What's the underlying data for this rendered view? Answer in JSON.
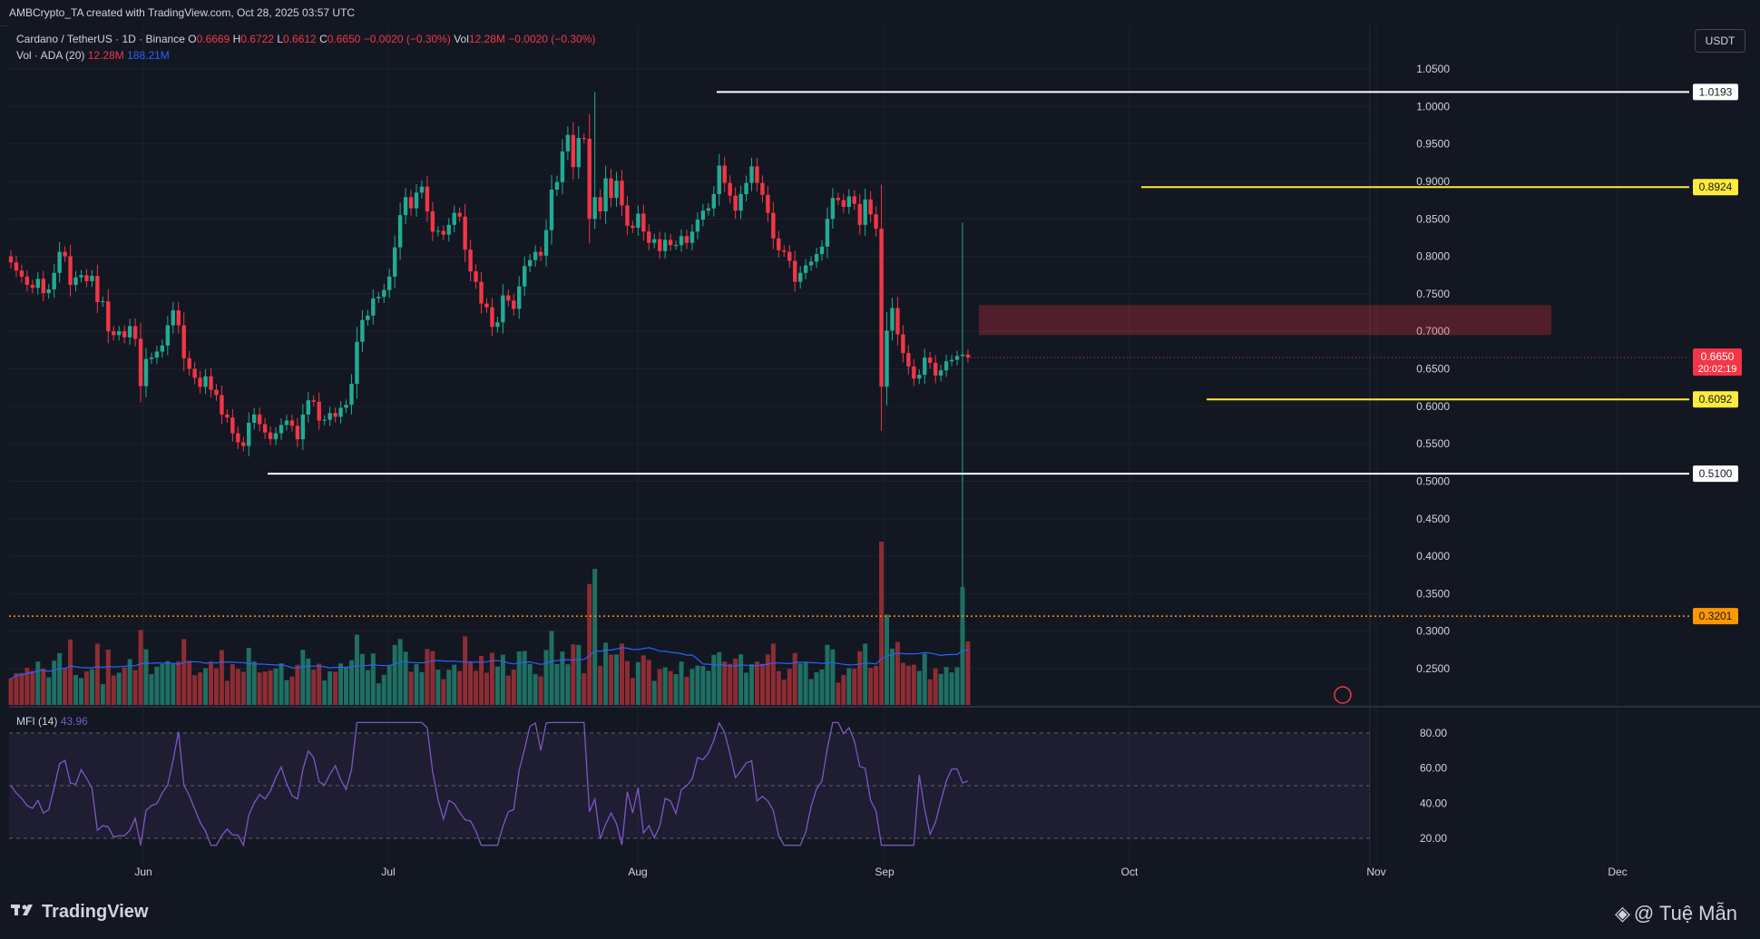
{
  "header": {
    "attribution": "AMBCrypto_TA created with TradingView.com, Oct 28, 2025 03:57 UTC"
  },
  "legend": {
    "symbol": "Cardano / TetherUS · 1D · Binance",
    "open_label": "O",
    "open": "0.6669",
    "high_label": "H",
    "high": "0.6722",
    "low_label": "L",
    "low": "0.6612",
    "close_label": "C",
    "close": "0.6650",
    "change": "−0.0020 (−0.30%)",
    "vol_label": "Vol",
    "vol": "12.28M",
    "vol_change": "−0.0020 (−0.30%)",
    "vol_ada_label": "Vol · ADA (20)",
    "vol_ada": "12.28M",
    "vol_ma": "188.21M"
  },
  "mfi_legend": {
    "label": "MFI (14)",
    "value": "43.96"
  },
  "currency_button": "USDT",
  "footer": {
    "brand": "TradingView",
    "watermark": "@ Tuệ Mẫn"
  },
  "colors": {
    "bg": "#131722",
    "up": "#22ab94",
    "down": "#f23645",
    "vol_up": "#1f6f63",
    "vol_down": "#8d2d33",
    "vol_ma": "#2962ff",
    "mfi": "#7e57c2",
    "yellow": "#ffeb3b",
    "orange": "#ff9800",
    "grid": "#1e222d",
    "text": "#d1d4dc"
  },
  "chart_data": {
    "type": "candlestick",
    "price_axis": {
      "ylim": [
        0.22,
        1.07
      ],
      "ticks": [
        "1.0500",
        "1.0000",
        "0.9500",
        "0.9000",
        "0.8500",
        "0.8000",
        "0.7500",
        "0.7000",
        "0.6500",
        "0.6000",
        "0.5500",
        "0.5000",
        "0.4500",
        "0.4000",
        "0.3500",
        "0.3000",
        "0.2500"
      ]
    },
    "time_axis": {
      "labels": [
        "Jun",
        "Jul",
        "Aug",
        "Sep",
        "Oct",
        "Nov",
        "Dec"
      ]
    },
    "levels": [
      {
        "price": 1.0193,
        "label": "1.0193",
        "style": "white"
      },
      {
        "price": 0.8924,
        "label": "0.8924",
        "style": "yellow"
      },
      {
        "price": 0.6092,
        "label": "0.6092",
        "style": "yellow"
      },
      {
        "price": 0.51,
        "label": "0.5100",
        "style": "white"
      },
      {
        "price": 0.3201,
        "label": "0.3201",
        "style": "orange-dotted"
      }
    ],
    "current_price": {
      "label": "0.6650",
      "countdown": "20:02:19"
    },
    "zone": {
      "from": 0.695,
      "to": 0.735
    },
    "closes": [
      0.792,
      0.781,
      0.773,
      0.762,
      0.758,
      0.77,
      0.751,
      0.756,
      0.778,
      0.806,
      0.8,
      0.762,
      0.772,
      0.775,
      0.767,
      0.774,
      0.739,
      0.74,
      0.7,
      0.695,
      0.7,
      0.692,
      0.707,
      0.69,
      0.627,
      0.663,
      0.665,
      0.673,
      0.681,
      0.708,
      0.728,
      0.708,
      0.664,
      0.65,
      0.638,
      0.626,
      0.64,
      0.622,
      0.615,
      0.589,
      0.585,
      0.564,
      0.552,
      0.547,
      0.578,
      0.589,
      0.576,
      0.565,
      0.556,
      0.564,
      0.575,
      0.581,
      0.574,
      0.556,
      0.589,
      0.608,
      0.606,
      0.581,
      0.582,
      0.591,
      0.586,
      0.598,
      0.602,
      0.63,
      0.686,
      0.715,
      0.721,
      0.744,
      0.746,
      0.755,
      0.773,
      0.812,
      0.855,
      0.879,
      0.864,
      0.885,
      0.893,
      0.86,
      0.833,
      0.834,
      0.829,
      0.842,
      0.858,
      0.853,
      0.809,
      0.78,
      0.766,
      0.737,
      0.732,
      0.706,
      0.712,
      0.748,
      0.741,
      0.73,
      0.76,
      0.787,
      0.795,
      0.806,
      0.801,
      0.835,
      0.889,
      0.899,
      0.94,
      0.962,
      0.919,
      0.958,
      0.957,
      0.85,
      0.879,
      0.86,
      0.904,
      0.878,
      0.901,
      0.868,
      0.841,
      0.838,
      0.857,
      0.833,
      0.818,
      0.823,
      0.807,
      0.822,
      0.815,
      0.815,
      0.827,
      0.818,
      0.833,
      0.849,
      0.861,
      0.864,
      0.883,
      0.921,
      0.898,
      0.881,
      0.861,
      0.883,
      0.898,
      0.92,
      0.898,
      0.882,
      0.858,
      0.824,
      0.808,
      0.806,
      0.794,
      0.766,
      0.778,
      0.788,
      0.793,
      0.803,
      0.813,
      0.85,
      0.878,
      0.875,
      0.866,
      0.88,
      0.87,
      0.842,
      0.876,
      0.856,
      0.837,
      0.626,
      0.701,
      0.731,
      0.696,
      0.671,
      0.653,
      0.637,
      0.642,
      0.665,
      0.658,
      0.641,
      0.648,
      0.66,
      0.662,
      0.667,
      0.669,
      0.665
    ]
  }
}
